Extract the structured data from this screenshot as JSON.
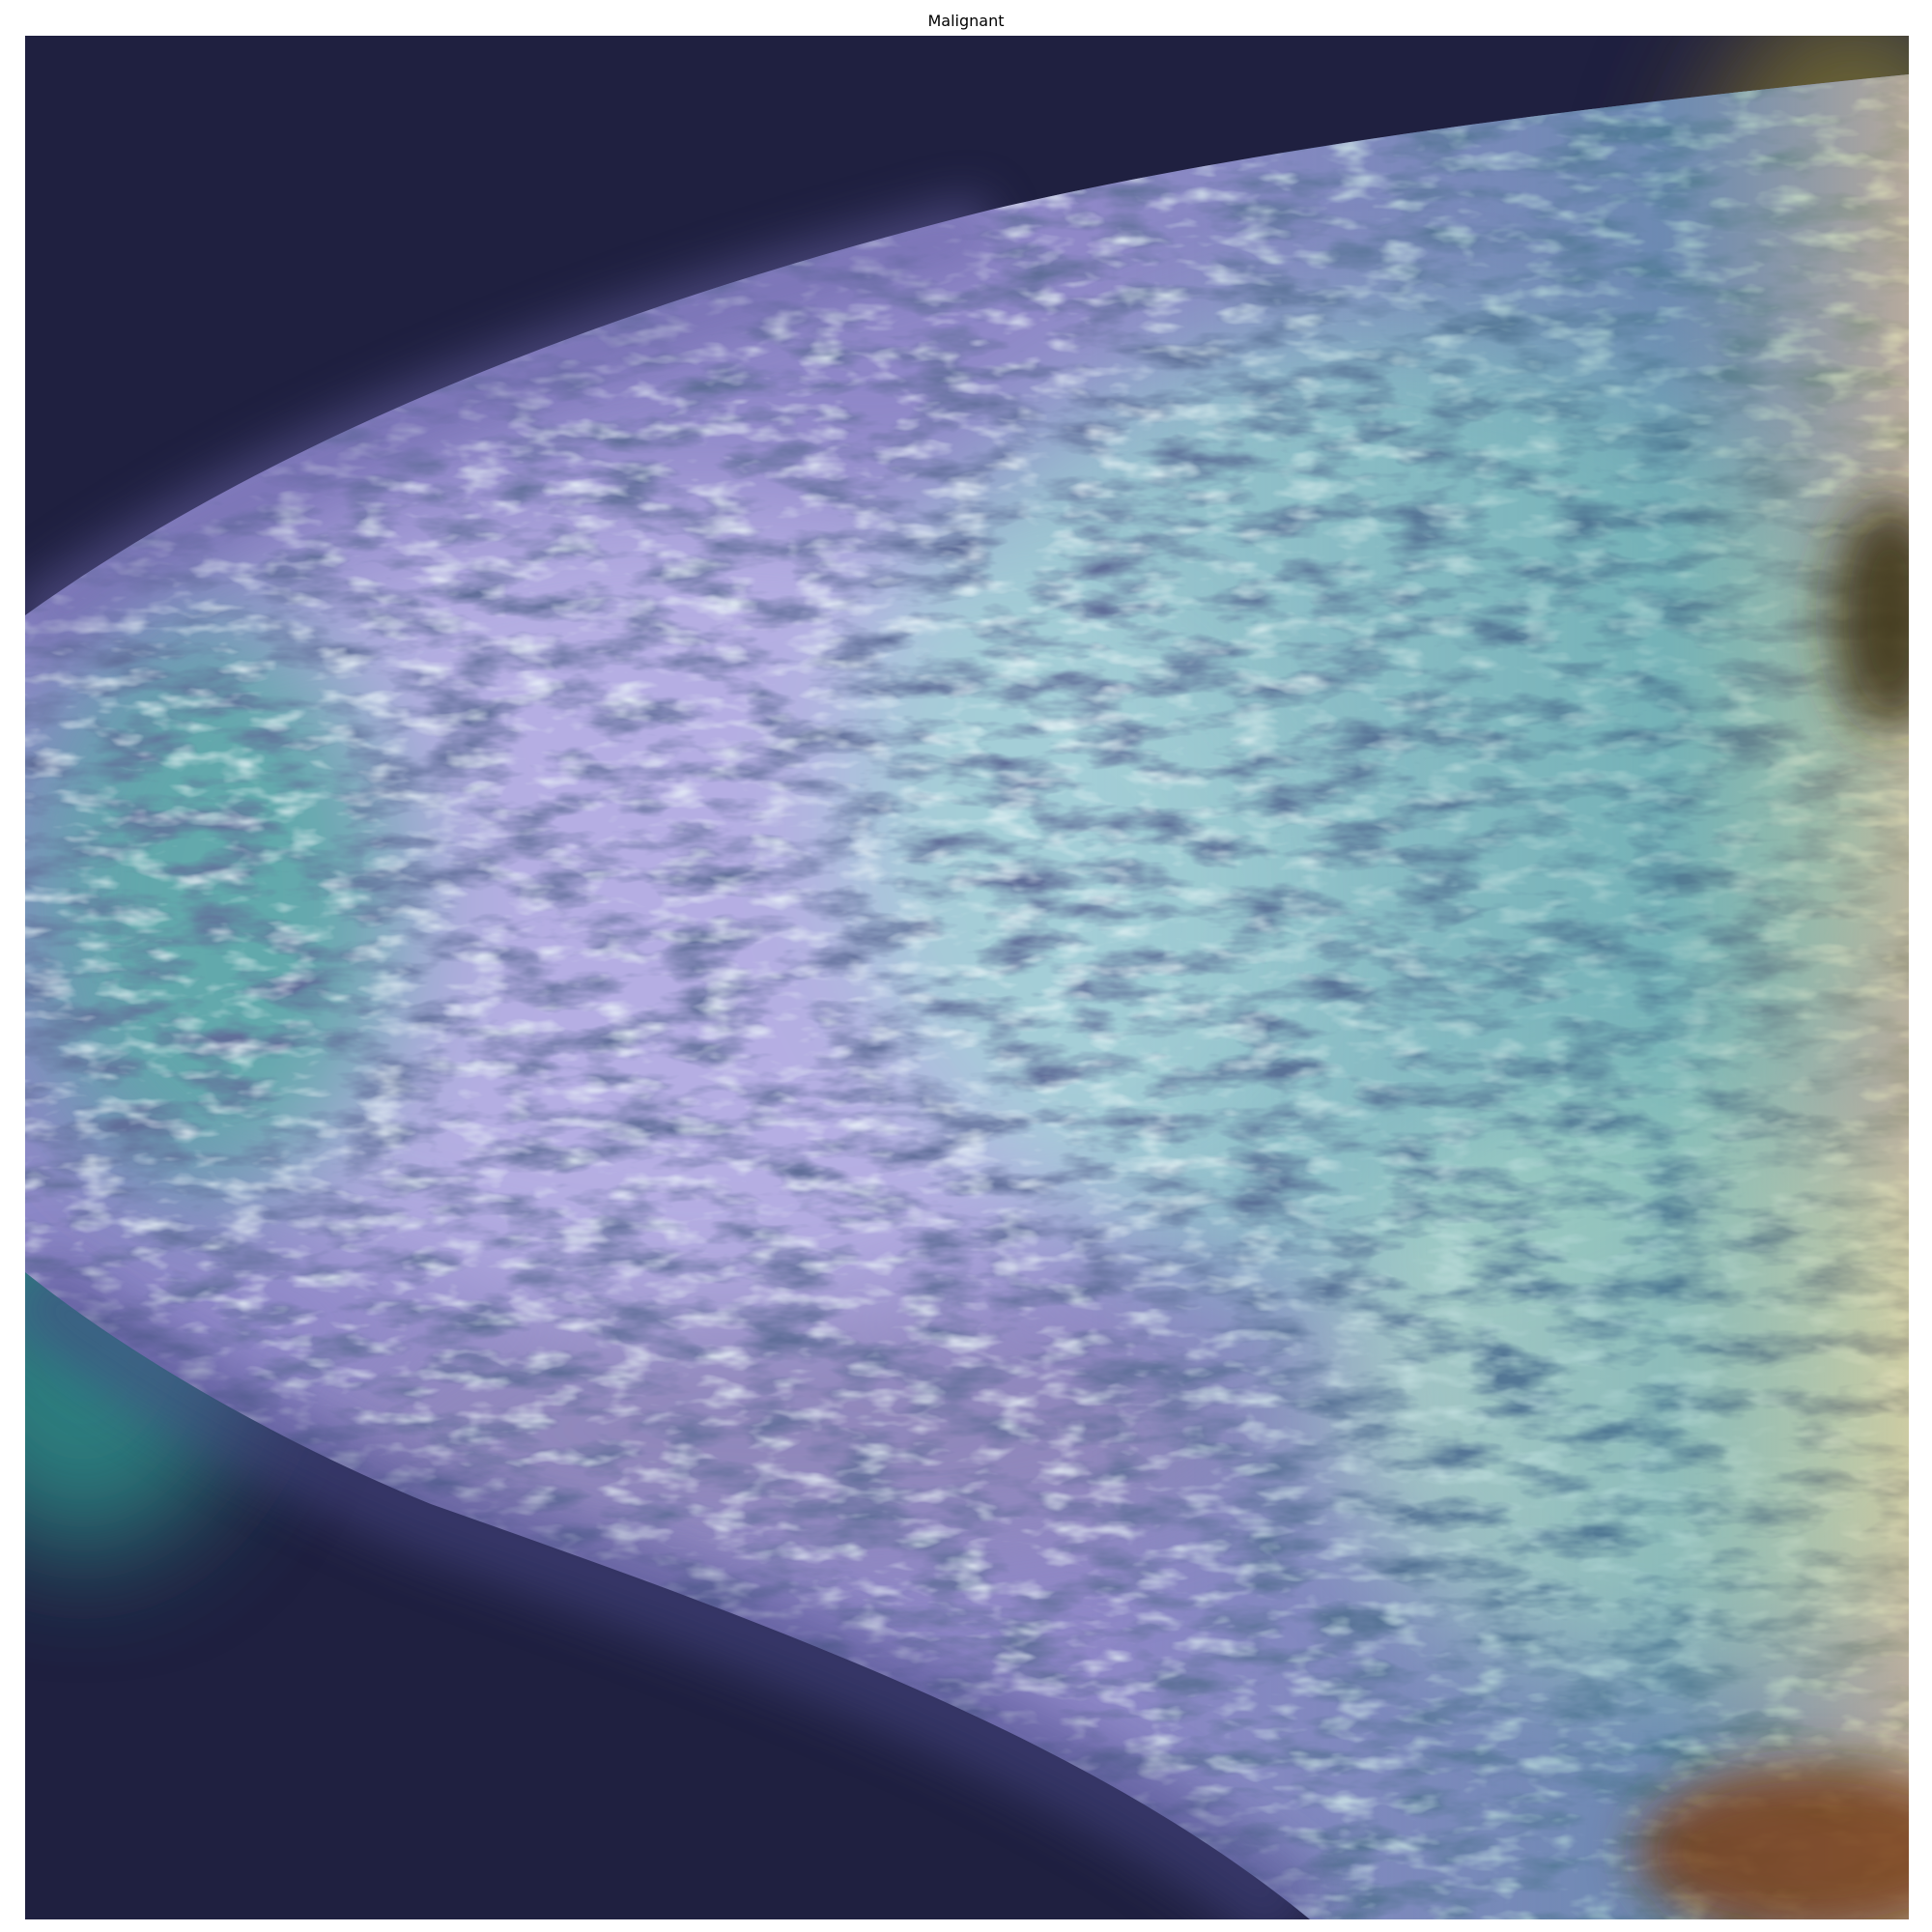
{
  "figure": {
    "title": "Malignant"
  },
  "image": {
    "kind": "mammogram with attention heatmap overlay",
    "palette": {
      "background": "#1f2040",
      "tissue_cool": "#b9b2e6",
      "tissue_dark": "#23305a",
      "teal_glow": "#2f8f8a",
      "cyan_highlight": "#bfece8",
      "warm_hot": "#d9c77a",
      "warm_deep": "#7a4a1e"
    }
  }
}
